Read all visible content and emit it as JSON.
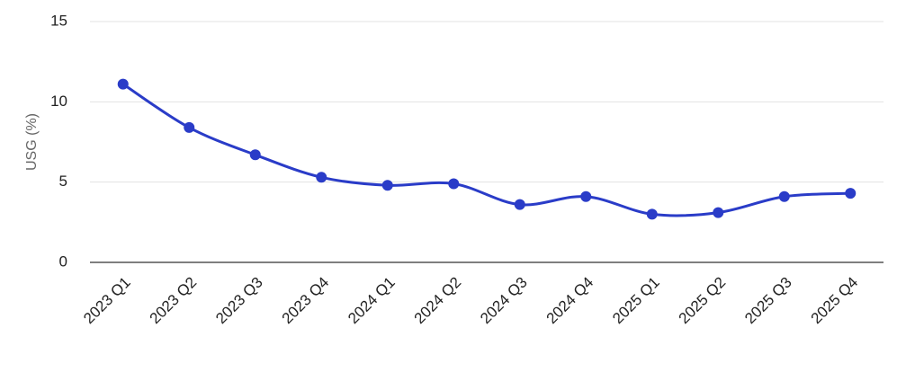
{
  "chart_data": {
    "type": "line",
    "y_label": "USG (%)",
    "categories": [
      "2023 Q1",
      "2023 Q2",
      "2023 Q3",
      "2023 Q4",
      "2024 Q1",
      "2024 Q2",
      "2024 Q3",
      "2024 Q4",
      "2025 Q1",
      "2025 Q2",
      "2025 Q3",
      "2025 Q4"
    ],
    "series": [
      {
        "color": "#2a3cc8",
        "values": [
          11.1,
          8.4,
          6.7,
          5.3,
          4.8,
          4.9,
          3.6,
          4.1,
          3.0,
          3.1,
          4.1,
          4.3
        ]
      }
    ],
    "ylim": [
      0,
      15
    ],
    "yticks": [
      0,
      5,
      10,
      15
    ],
    "grid": true,
    "smooth": true
  }
}
